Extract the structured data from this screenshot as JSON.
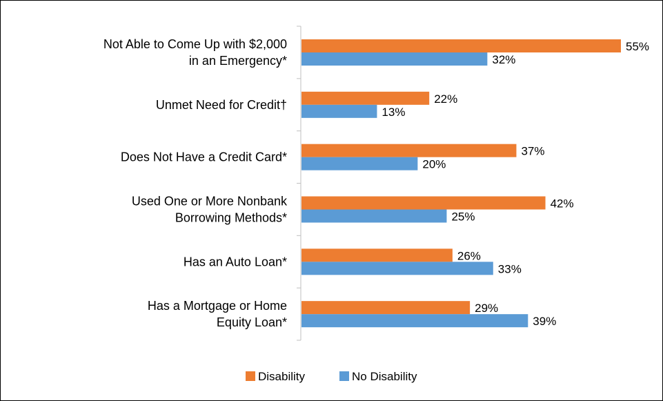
{
  "chart_data": {
    "type": "bar",
    "orientation": "horizontal",
    "categories": [
      [
        "Not Able to Come Up with $2,000",
        "in an Emergency*"
      ],
      [
        "Unmet Need for Credit†"
      ],
      [
        "Does Not Have a Credit Card*"
      ],
      [
        "Used One or More Nonbank",
        "Borrowing Methods*"
      ],
      [
        "Has an Auto Loan*"
      ],
      [
        "Has a Mortgage or Home",
        "Equity Loan*"
      ]
    ],
    "series": [
      {
        "name": "Disability",
        "color": "#ED7D31",
        "values": [
          55,
          22,
          37,
          42,
          26,
          29
        ],
        "labels": [
          "55%",
          "22%",
          "37%",
          "42%",
          "26%",
          "29%"
        ]
      },
      {
        "name": "No Disability",
        "color": "#5B9BD5",
        "values": [
          32,
          13,
          20,
          25,
          33,
          39
        ],
        "labels": [
          "32%",
          "13%",
          "20%",
          "25%",
          "33%",
          "39%"
        ]
      }
    ],
    "xlim": [
      0,
      60
    ],
    "grid": false,
    "legend_position": "bottom"
  }
}
